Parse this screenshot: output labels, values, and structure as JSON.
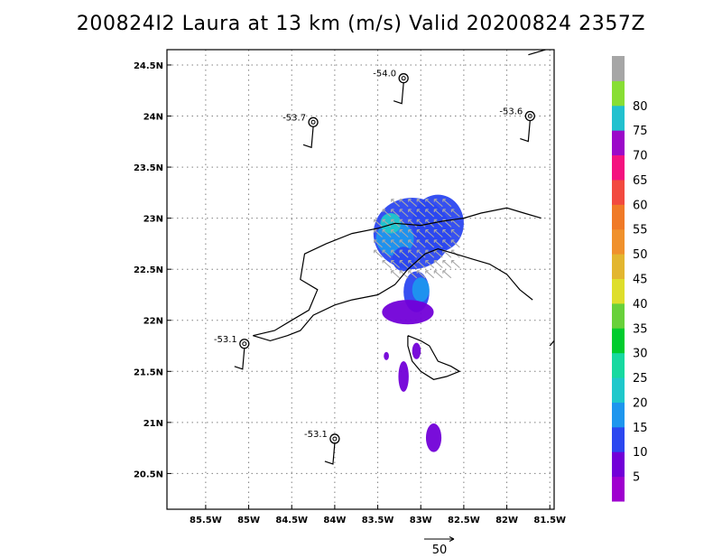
{
  "title": "200824I2 Laura at 13 km (m/s) Valid 20200824 2357Z",
  "map": {
    "lat_range": [
      20.15,
      24.65
    ],
    "lon_range": [
      -85.95,
      -81.45
    ],
    "lat_ticks": [
      {
        "value": 20.5,
        "label": "20.5N"
      },
      {
        "value": 21.0,
        "label": "21N"
      },
      {
        "value": 21.5,
        "label": "21.5N"
      },
      {
        "value": 22.0,
        "label": "22N"
      },
      {
        "value": 22.5,
        "label": "22.5N"
      },
      {
        "value": 23.0,
        "label": "23N"
      },
      {
        "value": 23.5,
        "label": "23.5N"
      },
      {
        "value": 24.0,
        "label": "24N"
      },
      {
        "value": 24.5,
        "label": "24.5N"
      }
    ],
    "lon_ticks": [
      {
        "value": -85.5,
        "label": "85.5W"
      },
      {
        "value": -85.0,
        "label": "85W"
      },
      {
        "value": -84.5,
        "label": "84.5W"
      },
      {
        "value": -84.0,
        "label": "84W"
      },
      {
        "value": -83.5,
        "label": "83.5W"
      },
      {
        "value": -83.0,
        "label": "83W"
      },
      {
        "value": -82.5,
        "label": "82.5W"
      },
      {
        "value": -82.0,
        "label": "82W"
      },
      {
        "value": -81.5,
        "label": "81.5W"
      }
    ],
    "coastline": [
      [
        [
          -84.95,
          21.85
        ],
        [
          -84.7,
          21.9
        ],
        [
          -84.5,
          22.0
        ],
        [
          -84.3,
          22.1
        ],
        [
          -84.2,
          22.3
        ],
        [
          -84.4,
          22.4
        ],
        [
          -84.35,
          22.65
        ],
        [
          -84.1,
          22.75
        ],
        [
          -83.8,
          22.85
        ],
        [
          -83.5,
          22.9
        ],
        [
          -83.3,
          22.95
        ],
        [
          -83.0,
          22.93
        ],
        [
          -82.75,
          22.97
        ],
        [
          -82.5,
          23.0
        ],
        [
          -82.3,
          23.05
        ],
        [
          -82.0,
          23.1
        ],
        [
          -81.8,
          23.05
        ],
        [
          -81.6,
          23.0
        ]
      ],
      [
        [
          -84.95,
          21.85
        ],
        [
          -84.75,
          21.8
        ],
        [
          -84.55,
          21.85
        ],
        [
          -84.4,
          21.9
        ],
        [
          -84.25,
          22.05
        ],
        [
          -84.0,
          22.15
        ],
        [
          -83.8,
          22.2
        ],
        [
          -83.5,
          22.25
        ],
        [
          -83.3,
          22.35
        ],
        [
          -83.15,
          22.5
        ],
        [
          -82.95,
          22.65
        ],
        [
          -82.8,
          22.7
        ],
        [
          -82.6,
          22.65
        ],
        [
          -82.4,
          22.6
        ],
        [
          -82.2,
          22.55
        ],
        [
          -82.0,
          22.45
        ],
        [
          -81.85,
          22.3
        ],
        [
          -81.7,
          22.2
        ]
      ],
      [
        [
          -83.15,
          21.85
        ],
        [
          -83.0,
          21.8
        ],
        [
          -82.9,
          21.75
        ],
        [
          -82.8,
          21.6
        ],
        [
          -82.65,
          21.55
        ],
        [
          -82.55,
          21.5
        ],
        [
          -82.7,
          21.45
        ],
        [
          -82.85,
          21.42
        ],
        [
          -83.0,
          21.5
        ],
        [
          -83.1,
          21.6
        ],
        [
          -83.15,
          21.75
        ],
        [
          -83.15,
          21.85
        ]
      ],
      [
        [
          -81.5,
          21.75
        ],
        [
          -81.45,
          21.8
        ]
      ],
      [
        [
          -81.75,
          24.6
        ],
        [
          -81.55,
          24.65
        ]
      ]
    ]
  },
  "colorbar": {
    "segments": [
      {
        "label": "",
        "color": "#9f00cf"
      },
      {
        "label": "5",
        "color": "#7200d8"
      },
      {
        "label": "10",
        "color": "#2b47f0"
      },
      {
        "label": "15",
        "color": "#1e96ee"
      },
      {
        "label": "20",
        "color": "#1fc8cb"
      },
      {
        "label": "25",
        "color": "#17d9a0"
      },
      {
        "label": "30",
        "color": "#00cc2e"
      },
      {
        "label": "35",
        "color": "#68d13a"
      },
      {
        "label": "40",
        "color": "#dede2b"
      },
      {
        "label": "45",
        "color": "#e3b62f"
      },
      {
        "label": "50",
        "color": "#f0912c"
      },
      {
        "label": "55",
        "color": "#f07a27"
      },
      {
        "label": "60",
        "color": "#f24a3f"
      },
      {
        "label": "65",
        "color": "#f4127f"
      },
      {
        "label": "70",
        "color": "#9b09c9"
      },
      {
        "label": "75",
        "color": "#22c1cf"
      },
      {
        "label": "80",
        "color": "#88de34"
      },
      {
        "label": "",
        "color": "#a6a6a6"
      }
    ]
  },
  "observations": [
    {
      "label": "-54.0",
      "lon": -83.2,
      "lat": 24.37
    },
    {
      "label": "-53.7",
      "lon": -84.25,
      "lat": 23.94
    },
    {
      "label": "-53.6",
      "lon": -81.73,
      "lat": 24.0
    },
    {
      "label": "-53.1",
      "lon": -85.05,
      "lat": 21.77
    },
    {
      "label": "-53.1",
      "lon": -84.0,
      "lat": 20.84
    }
  ],
  "scale_arrow": {
    "label": "50"
  },
  "colors": {
    "grid": "#808080",
    "coast": "#000000",
    "wind_arrow": "#a9a9a9"
  }
}
